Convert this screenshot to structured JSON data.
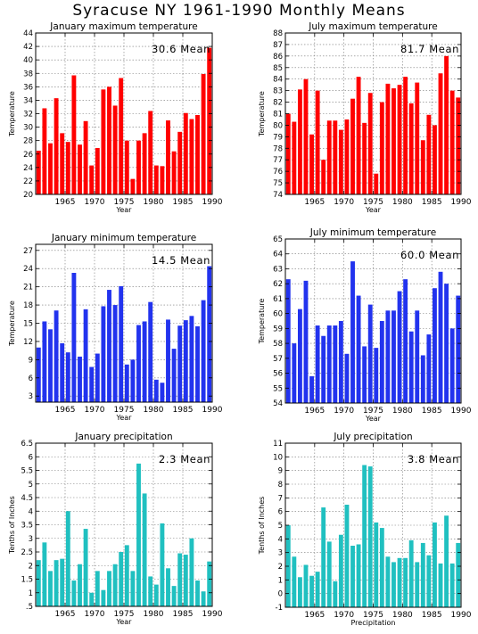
{
  "title": "Syracuse NY   1961-1990  Monthly Means",
  "chart_data": [
    {
      "type": "bar",
      "title": "January maximum temperature",
      "xlabel": "Year",
      "ylabel": "Temperature",
      "color": "#ff0000",
      "x": [
        1961,
        1962,
        1963,
        1964,
        1965,
        1966,
        1967,
        1968,
        1969,
        1970,
        1971,
        1972,
        1973,
        1974,
        1975,
        1976,
        1977,
        1978,
        1979,
        1980,
        1981,
        1982,
        1983,
        1984,
        1985,
        1986,
        1987,
        1988,
        1989,
        1990
      ],
      "values": [
        26.5,
        32.8,
        27.6,
        34.3,
        29.1,
        27.8,
        37.7,
        27.4,
        30.9,
        24.3,
        26.9,
        35.6,
        36.0,
        33.2,
        37.3,
        28.0,
        22.3,
        28.0,
        29.1,
        32.4,
        24.3,
        24.2,
        31.0,
        26.4,
        29.3,
        32.1,
        31.2,
        31.8,
        37.9,
        41.8
      ],
      "ylim": [
        20,
        44
      ],
      "yticks": [
        20,
        22,
        24,
        26,
        28,
        30,
        32,
        34,
        36,
        38,
        40,
        42,
        44
      ],
      "xticks": [
        1965,
        1970,
        1975,
        1980,
        1985,
        1990
      ],
      "mean": "30.6",
      "mean_label": "Mean"
    },
    {
      "type": "bar",
      "title": "July maximum temperature",
      "xlabel": "Year",
      "ylabel": "Temperature",
      "color": "#ff0000",
      "x": [
        1961,
        1962,
        1963,
        1964,
        1965,
        1966,
        1967,
        1968,
        1969,
        1970,
        1971,
        1972,
        1973,
        1974,
        1975,
        1976,
        1977,
        1978,
        1979,
        1980,
        1981,
        1982,
        1983,
        1984,
        1985,
        1986,
        1987,
        1988,
        1989,
        1990
      ],
      "values": [
        81.0,
        80.3,
        83.1,
        84.0,
        79.2,
        83.0,
        77.0,
        80.4,
        80.4,
        79.6,
        80.5,
        82.3,
        84.2,
        80.2,
        82.8,
        75.8,
        82.0,
        83.6,
        83.2,
        83.5,
        84.2,
        81.9,
        83.7,
        78.7,
        80.9,
        80.0,
        84.5,
        86.0,
        83.0,
        82.4
      ],
      "ylim": [
        74,
        88
      ],
      "yticks": [
        74,
        75,
        76,
        77,
        78,
        79,
        80,
        81,
        82,
        83,
        84,
        85,
        86,
        87,
        88
      ],
      "xticks": [
        1965,
        1970,
        1975,
        1980,
        1985,
        1990
      ],
      "mean": "81.7",
      "mean_label": "Mean"
    },
    {
      "type": "bar",
      "title": "January minimum temperature",
      "xlabel": "Year",
      "ylabel": "Temperature",
      "color": "#2233ee",
      "x": [
        1961,
        1962,
        1963,
        1964,
        1965,
        1966,
        1967,
        1968,
        1969,
        1970,
        1971,
        1972,
        1973,
        1974,
        1975,
        1976,
        1977,
        1978,
        1979,
        1980,
        1981,
        1982,
        1983,
        1984,
        1985,
        1986,
        1987,
        1988,
        1989,
        1990
      ],
      "values": [
        11.0,
        15.3,
        14.0,
        17.1,
        11.7,
        10.2,
        23.3,
        9.5,
        17.3,
        7.8,
        10.0,
        17.8,
        20.5,
        18.0,
        21.1,
        8.2,
        9.0,
        14.7,
        15.3,
        18.5,
        5.7,
        5.2,
        15.6,
        10.8,
        14.6,
        15.5,
        16.2,
        14.5,
        18.8,
        24.4
      ],
      "ylim": [
        2,
        28
      ],
      "yticks": [
        3,
        6,
        9,
        12,
        15,
        18,
        21,
        24,
        27
      ],
      "xticks": [
        1965,
        1970,
        1975,
        1980,
        1985,
        1990
      ],
      "mean": "14.5",
      "mean_label": "Mean"
    },
    {
      "type": "bar",
      "title": "July minimum temperature",
      "xlabel": "Year",
      "ylabel": "Temperature",
      "color": "#2233ee",
      "x": [
        1961,
        1962,
        1963,
        1964,
        1965,
        1966,
        1967,
        1968,
        1969,
        1970,
        1971,
        1972,
        1973,
        1974,
        1975,
        1976,
        1977,
        1978,
        1979,
        1980,
        1981,
        1982,
        1983,
        1984,
        1985,
        1986,
        1987,
        1988,
        1989,
        1990
      ],
      "values": [
        62.3,
        58.0,
        60.3,
        62.2,
        55.8,
        59.2,
        58.5,
        59.2,
        59.2,
        59.5,
        57.3,
        63.5,
        61.2,
        57.8,
        60.6,
        57.7,
        59.5,
        60.2,
        60.2,
        61.5,
        62.3,
        58.8,
        60.2,
        57.2,
        58.6,
        61.7,
        62.8,
        62.0,
        59.0,
        61.2
      ],
      "ylim": [
        54,
        65
      ],
      "yticks": [
        54,
        55,
        56,
        57,
        58,
        59,
        60,
        61,
        62,
        63,
        64,
        65
      ],
      "xticks": [
        1965,
        1970,
        1975,
        1980,
        1985,
        1990
      ],
      "mean": "60.0",
      "mean_label": "Mean"
    },
    {
      "type": "bar",
      "title": "January precipitation",
      "xlabel": "Year",
      "ylabel": "Tenths of Inches",
      "color": "#20c0c0",
      "x": [
        1961,
        1962,
        1963,
        1964,
        1965,
        1966,
        1967,
        1968,
        1969,
        1970,
        1971,
        1972,
        1973,
        1974,
        1975,
        1976,
        1977,
        1978,
        1979,
        1980,
        1981,
        1982,
        1983,
        1984,
        1985,
        1986,
        1987,
        1988,
        1989,
        1990
      ],
      "values": [
        2.2,
        2.85,
        1.8,
        2.2,
        2.25,
        4.0,
        1.45,
        2.05,
        3.35,
        1.0,
        1.8,
        1.1,
        1.8,
        2.05,
        2.5,
        2.75,
        1.8,
        5.75,
        4.65,
        1.6,
        1.3,
        3.55,
        1.9,
        1.25,
        2.45,
        2.4,
        3.0,
        1.45,
        1.05,
        2.15
      ],
      "ylim": [
        0.5,
        6.5
      ],
      "yticks": [
        0.5,
        1,
        1.5,
        2,
        2.5,
        3,
        3.5,
        4,
        4.5,
        5,
        5.5,
        6,
        6.5
      ],
      "xticks": [
        1965,
        1970,
        1975,
        1980,
        1985,
        1990
      ],
      "mean": "2.3",
      "mean_label": "Mean"
    },
    {
      "type": "bar",
      "title": "July precipitation",
      "xlabel": "Precipitation",
      "ylabel": "Tenths of Inches",
      "color": "#20c0c0",
      "x": [
        1961,
        1962,
        1963,
        1964,
        1965,
        1966,
        1967,
        1968,
        1969,
        1970,
        1971,
        1972,
        1973,
        1974,
        1975,
        1976,
        1977,
        1978,
        1979,
        1980,
        1981,
        1982,
        1983,
        1984,
        1985,
        1986,
        1987,
        1988,
        1989,
        1990
      ],
      "values": [
        5.0,
        2.7,
        1.2,
        2.1,
        1.3,
        1.6,
        6.3,
        3.8,
        0.9,
        4.3,
        6.5,
        3.5,
        3.6,
        9.4,
        9.3,
        5.2,
        4.8,
        2.7,
        2.3,
        2.6,
        2.6,
        3.9,
        2.3,
        3.7,
        2.8,
        5.2,
        2.2,
        5.7,
        2.2,
        3.7
      ],
      "ylim": [
        -1,
        11
      ],
      "yticks": [
        -1,
        0,
        1,
        2,
        3,
        4,
        5,
        6,
        7,
        8,
        9,
        10,
        11
      ],
      "xticks": [
        1965,
        1970,
        1975,
        1980,
        1985,
        1990
      ],
      "mean": "3.8",
      "mean_label": "Mean"
    }
  ]
}
